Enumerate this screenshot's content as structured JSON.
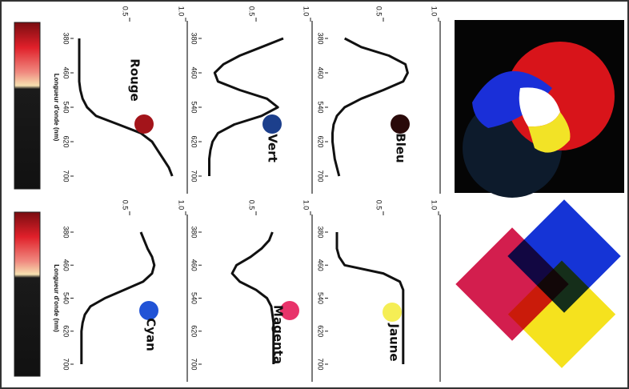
{
  "chart_data": [
    {
      "type": "line",
      "title": "Rouge",
      "xlabel": "Longueur d'onde (nm)",
      "color": "#111111",
      "swatch": "#a3141a",
      "x": [
        380,
        400,
        420,
        440,
        460,
        480,
        500,
        520,
        540,
        560,
        580,
        600,
        620,
        640,
        660,
        680,
        700
      ],
      "values": [
        0.05,
        0.05,
        0.05,
        0.05,
        0.05,
        0.05,
        0.06,
        0.08,
        0.12,
        0.2,
        0.4,
        0.6,
        0.7,
        0.75,
        0.8,
        0.85,
        0.88
      ],
      "xlim": [
        380,
        700
      ],
      "xticks": [
        380,
        460,
        540,
        620,
        700
      ],
      "ylim": [
        0,
        1
      ],
      "yticks": [
        0.5,
        {
          "value": 1,
          "label": "1.0"
        }
      ]
    },
    {
      "type": "line",
      "title": "Vert",
      "color": "#111111",
      "swatch": "#1c3f8c",
      "x": [
        380,
        400,
        420,
        440,
        460,
        480,
        500,
        520,
        540,
        560,
        580,
        600,
        620,
        640,
        660,
        680,
        700
      ],
      "values": [
        0.75,
        0.55,
        0.35,
        0.2,
        0.12,
        0.15,
        0.35,
        0.6,
        0.7,
        0.55,
        0.3,
        0.15,
        0.1,
        0.08,
        0.07,
        0.07,
        0.07
      ],
      "xlim": [
        380,
        700
      ],
      "xticks": [
        380,
        460,
        540,
        620,
        700
      ],
      "ylim": [
        0,
        1
      ],
      "yticks": [
        0.5,
        {
          "value": 1,
          "label": "1.0"
        }
      ]
    },
    {
      "type": "line",
      "title": "Bleu",
      "color": "#111111",
      "swatch": "#2a0a0a",
      "x": [
        380,
        400,
        420,
        440,
        460,
        480,
        500,
        520,
        540,
        560,
        580,
        600,
        620,
        640,
        660,
        680,
        700
      ],
      "values": [
        0.15,
        0.3,
        0.55,
        0.7,
        0.72,
        0.68,
        0.5,
        0.3,
        0.15,
        0.08,
        0.05,
        0.04,
        0.04,
        0.05,
        0.06,
        0.08,
        0.1
      ],
      "xlim": [
        380,
        700
      ],
      "xticks": [
        380,
        460,
        540,
        620,
        700
      ],
      "ylim": [
        0,
        1
      ],
      "yticks": [
        0.5,
        {
          "value": 1,
          "label": "1.0"
        }
      ]
    },
    {
      "type": "line",
      "title": "Cyan",
      "xlabel": "Longueur d'onde (nm)",
      "color": "#111111",
      "swatch": "#2153d6",
      "x": [
        380,
        400,
        420,
        440,
        460,
        480,
        500,
        520,
        540,
        560,
        580,
        600,
        620,
        640,
        660,
        680,
        700
      ],
      "values": [
        0.6,
        0.63,
        0.66,
        0.7,
        0.72,
        0.7,
        0.62,
        0.45,
        0.28,
        0.15,
        0.1,
        0.08,
        0.07,
        0.07,
        0.07,
        0.07,
        0.07
      ],
      "xlim": [
        380,
        700
      ],
      "xticks": [
        380,
        460,
        540,
        620,
        700
      ],
      "ylim": [
        0,
        1
      ],
      "yticks": [
        0.5,
        {
          "value": 1,
          "label": "1.0"
        }
      ]
    },
    {
      "type": "line",
      "title": "Magenta",
      "color": "#111111",
      "swatch": "#e8336a",
      "x": [
        380,
        400,
        420,
        440,
        460,
        480,
        500,
        520,
        540,
        560,
        580,
        600,
        620,
        640,
        660,
        680,
        700
      ],
      "values": [
        0.65,
        0.62,
        0.55,
        0.45,
        0.32,
        0.28,
        0.35,
        0.5,
        0.6,
        0.64,
        0.65,
        0.66,
        0.66,
        0.66,
        0.66,
        0.66,
        0.66
      ],
      "xlim": [
        380,
        700
      ],
      "xticks": [
        380,
        460,
        540,
        620,
        700
      ],
      "ylim": [
        0,
        1
      ],
      "yticks": [
        0.5,
        {
          "value": 1,
          "label": "1.0"
        }
      ]
    },
    {
      "type": "line",
      "title": "Jaune",
      "color": "#111111",
      "swatch": "#f5ee55",
      "x": [
        380,
        400,
        420,
        440,
        460,
        480,
        500,
        520,
        540,
        560,
        580,
        600,
        620,
        640,
        660,
        680,
        700
      ],
      "values": [
        0.08,
        0.08,
        0.08,
        0.1,
        0.15,
        0.5,
        0.65,
        0.68,
        0.68,
        0.68,
        0.68,
        0.68,
        0.68,
        0.68,
        0.68,
        0.68,
        0.68
      ],
      "xlim": [
        380,
        700
      ],
      "xticks": [
        380,
        460,
        540,
        620,
        700
      ],
      "ylim": [
        0,
        1
      ],
      "yticks": [
        0.5,
        {
          "value": 1,
          "label": "1.0"
        }
      ]
    }
  ]
}
